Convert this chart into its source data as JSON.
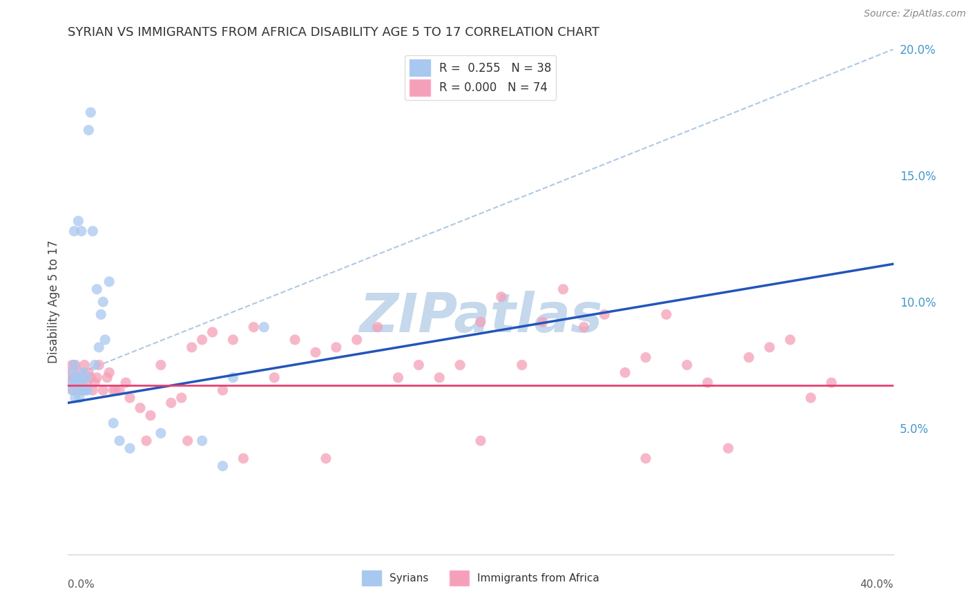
{
  "title": "SYRIAN VS IMMIGRANTS FROM AFRICA DISABILITY AGE 5 TO 17 CORRELATION CHART",
  "source_text": "Source: ZipAtlas.com",
  "ylabel": "Disability Age 5 to 17",
  "xmin": 0.0,
  "xmax": 40.0,
  "ymin": 0.0,
  "ymax": 20.0,
  "right_yticks": [
    5.0,
    10.0,
    15.0,
    20.0
  ],
  "right_ytick_labels": [
    "5.0%",
    "10.0%",
    "15.0%",
    "20.0%"
  ],
  "legend_r1": "R =  0.255",
  "legend_n1": "N = 38",
  "legend_r2": "R = 0.000",
  "legend_n2": "N = 74",
  "blue_color": "#A8C8F0",
  "pink_color": "#F4A0B8",
  "blue_line_color": "#2255BB",
  "pink_line_color": "#E84070",
  "dashed_line_color": "#99BBDD",
  "watermark_color": "#C5D8EC",
  "blue_trend_y0": 6.0,
  "blue_trend_y1": 11.5,
  "pink_flat_y": 6.7,
  "dash_y0": 7.0,
  "dash_y1": 20.0,
  "syrians_x": [
    0.15,
    0.2,
    0.25,
    0.3,
    0.3,
    0.35,
    0.4,
    0.4,
    0.5,
    0.5,
    0.55,
    0.6,
    0.65,
    0.7,
    0.7,
    0.75,
    0.8,
    0.85,
    0.9,
    0.95,
    1.0,
    1.1,
    1.2,
    1.3,
    1.4,
    1.5,
    1.6,
    1.7,
    1.8,
    2.0,
    2.2,
    2.5,
    3.0,
    4.5,
    6.5,
    7.5,
    8.0,
    9.5
  ],
  "syrians_y": [
    6.8,
    6.5,
    7.2,
    7.5,
    12.8,
    6.2,
    7.0,
    6.8,
    6.5,
    13.2,
    6.2,
    7.0,
    12.8,
    6.5,
    6.8,
    7.2,
    6.5,
    6.5,
    7.0,
    6.5,
    16.8,
    17.5,
    12.8,
    7.5,
    10.5,
    8.2,
    9.5,
    10.0,
    8.5,
    10.8,
    5.2,
    4.5,
    4.2,
    4.8,
    4.5,
    3.5,
    7.0,
    9.0
  ],
  "africa_x": [
    0.1,
    0.15,
    0.2,
    0.25,
    0.3,
    0.35,
    0.4,
    0.45,
    0.5,
    0.55,
    0.6,
    0.7,
    0.75,
    0.8,
    0.9,
    1.0,
    1.1,
    1.2,
    1.3,
    1.5,
    1.7,
    1.9,
    2.0,
    2.2,
    2.5,
    2.8,
    3.0,
    3.5,
    4.0,
    4.5,
    5.0,
    5.5,
    6.0,
    6.5,
    7.0,
    7.5,
    8.0,
    9.0,
    10.0,
    11.0,
    12.0,
    13.0,
    14.0,
    15.0,
    16.0,
    17.0,
    18.0,
    19.0,
    20.0,
    21.0,
    22.0,
    23.0,
    24.0,
    25.0,
    26.0,
    27.0,
    28.0,
    29.0,
    30.0,
    31.0,
    32.0,
    33.0,
    34.0,
    35.0,
    36.0,
    37.0,
    1.4,
    2.3,
    3.8,
    5.8,
    8.5,
    12.5,
    20.0,
    28.0
  ],
  "africa_y": [
    6.8,
    7.2,
    7.5,
    6.5,
    7.0,
    7.5,
    6.8,
    7.0,
    6.5,
    7.2,
    6.8,
    6.5,
    7.0,
    7.5,
    6.8,
    7.2,
    7.0,
    6.5,
    6.8,
    7.5,
    6.5,
    7.0,
    7.2,
    6.5,
    6.5,
    6.8,
    6.2,
    5.8,
    5.5,
    7.5,
    6.0,
    6.2,
    8.2,
    8.5,
    8.8,
    6.5,
    8.5,
    9.0,
    7.0,
    8.5,
    8.0,
    8.2,
    8.5,
    9.0,
    7.0,
    7.5,
    7.0,
    7.5,
    9.2,
    10.2,
    7.5,
    9.2,
    10.5,
    9.0,
    9.5,
    7.2,
    7.8,
    9.5,
    7.5,
    6.8,
    4.2,
    7.8,
    8.2,
    8.5,
    6.2,
    6.8,
    7.0,
    6.5,
    4.5,
    4.5,
    3.8,
    3.8,
    4.5,
    3.8
  ]
}
